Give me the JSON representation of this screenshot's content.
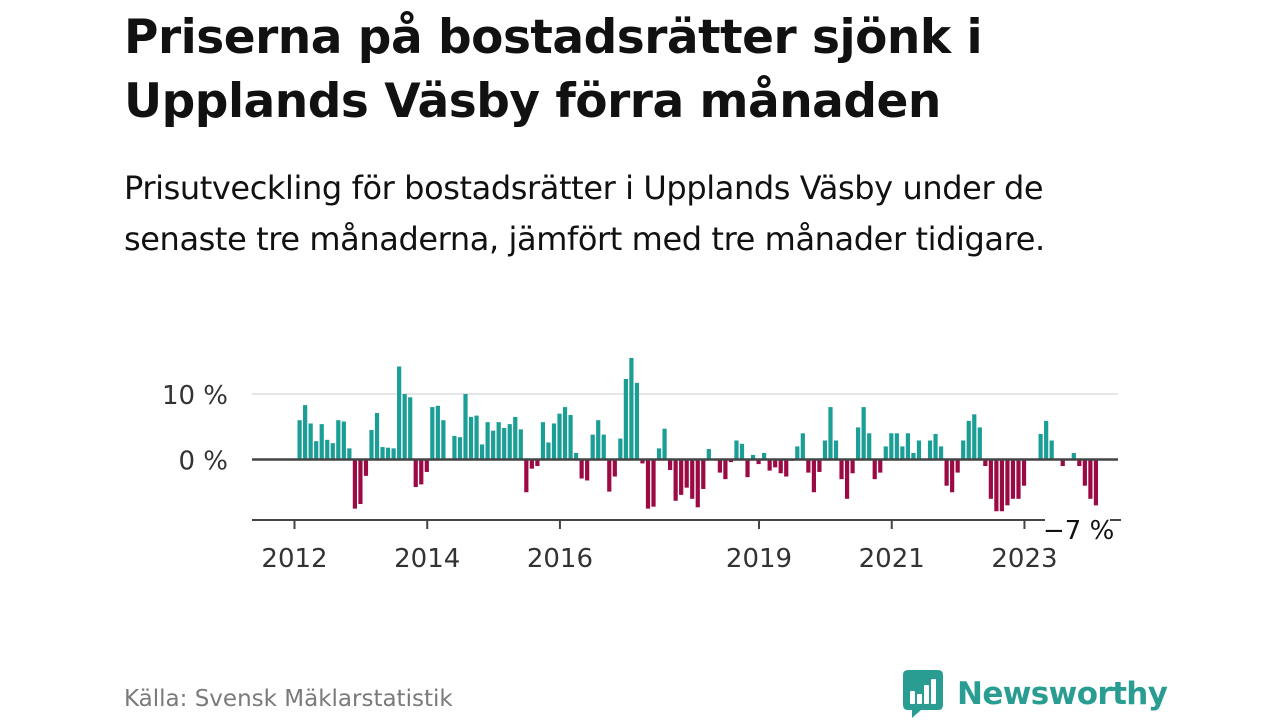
{
  "title": "Priserna på bostadsrätter sjönk i Upplands Väsby förra månaden",
  "subtitle": "Prisutveckling för bostadsrätter i Upplands Väsby under de senaste tre månaderna, jämfört med tre månader tidigare.",
  "source": "Källa: Svensk Mäklarstatistik",
  "brand": "Newsworthy",
  "colors": {
    "positive": "#1a9e96",
    "negative": "#9b0a45",
    "brand": "#2a9d93",
    "gridline": "#dddddd",
    "zero_line": "#444444"
  },
  "chart_data": {
    "type": "bar",
    "title": "Prisutveckling för bostadsrätter i Upplands Väsby",
    "xlabel": "",
    "ylabel": "",
    "ylim": [
      -9,
      16
    ],
    "y_ticks": [
      {
        "value": 0,
        "label": "0 %"
      },
      {
        "value": 10,
        "label": "10 %"
      }
    ],
    "x_ticks": [
      {
        "year": 2012,
        "label": "2012"
      },
      {
        "year": 2014,
        "label": "2014"
      },
      {
        "year": 2016,
        "label": "2016"
      },
      {
        "year": 2019,
        "label": "2019"
      },
      {
        "year": 2021,
        "label": "2021"
      },
      {
        "year": 2023,
        "label": "2023"
      }
    ],
    "start": "2012-01",
    "end": "2023-09",
    "last_value_label": "−7 %",
    "series": [
      {
        "name": "Prisutveckling (%)",
        "values": [
          6.0,
          8.3,
          5.5,
          2.8,
          5.4,
          3.0,
          2.5,
          6.0,
          5.8,
          1.7,
          -7.5,
          -6.8,
          -2.5,
          4.5,
          7.1,
          1.9,
          1.8,
          1.7,
          14.2,
          10.0,
          9.5,
          -4.2,
          -3.8,
          -1.9,
          8.0,
          8.2,
          6.0,
          0.0,
          3.6,
          3.4,
          10.0,
          6.5,
          6.7,
          2.3,
          5.7,
          4.4,
          5.7,
          4.8,
          5.4,
          6.5,
          4.6,
          -5.0,
          -1.4,
          -1.0,
          5.7,
          2.6,
          5.5,
          7.0,
          8.0,
          6.8,
          1.0,
          -2.9,
          -3.2,
          3.8,
          6.0,
          3.8,
          -4.9,
          -2.6,
          3.2,
          12.3,
          15.5,
          11.7,
          -0.6,
          -7.5,
          -7.2,
          1.7,
          4.7,
          -1.6,
          -6.3,
          -5.4,
          -4.3,
          -6.0,
          -7.3,
          -4.5,
          1.6,
          0.0,
          -2.0,
          -3.0,
          -0.4,
          2.9,
          2.4,
          -2.7,
          0.7,
          -0.7,
          1.0,
          -1.7,
          -1.2,
          -2.1,
          -2.6,
          -0.2,
          2.0,
          4.0,
          -2.0,
          -5.0,
          -1.9,
          2.9,
          8.0,
          2.9,
          -3.0,
          -6.0,
          -2.1,
          4.9,
          8.0,
          4.0,
          -3.0,
          -2.0,
          2.0,
          4.0,
          4.0,
          2.0,
          4.0,
          1.0,
          2.9,
          0.0,
          2.9,
          3.9,
          2.0,
          -4.0,
          -5.0,
          -2.0,
          2.9,
          5.9,
          6.9,
          4.9,
          -1.0,
          -6.0,
          -7.9,
          -7.9,
          -7.0,
          -6.0,
          -6.0,
          -4.0,
          0.0,
          -0.1,
          3.9,
          5.9,
          2.9,
          0.0,
          -1.0,
          0.0,
          1.0,
          -1.0,
          -4.0,
          -6.0,
          -7.0
        ]
      }
    ]
  }
}
